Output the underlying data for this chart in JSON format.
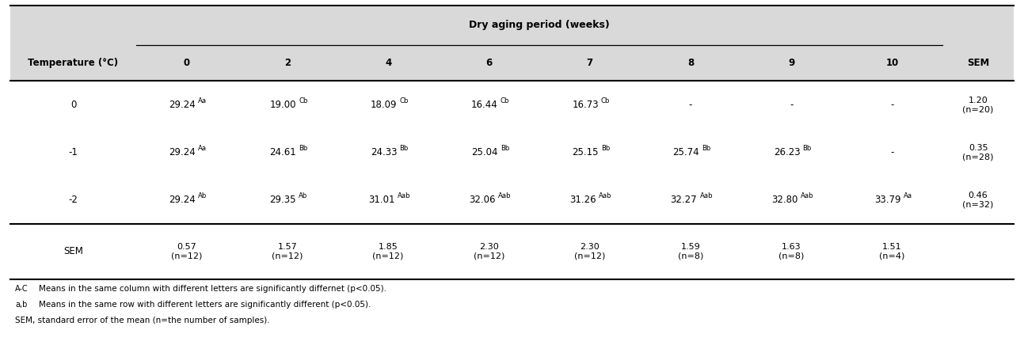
{
  "title": "Dry aging period (weeks)",
  "col_header": [
    "0",
    "2",
    "4",
    "6",
    "7",
    "8",
    "9",
    "10"
  ],
  "sem_col_header": "SEM",
  "temp_col_header": "Temperature (°C)",
  "data_raw": {
    "0": [
      "29.24",
      "19.00",
      "18.09",
      "16.44",
      "16.73",
      "-",
      "-",
      "-"
    ],
    "-1": [
      "29.24",
      "24.61",
      "24.33",
      "25.04",
      "25.15",
      "25.74",
      "26.23",
      "-"
    ],
    "-2": [
      "29.24",
      "29.35",
      "31.01",
      "32.06",
      "31.26",
      "32.27",
      "32.80",
      "33.79"
    ],
    "SEM": [
      "0.57\n(n=12)",
      "1.57\n(n=12)",
      "1.85\n(n=12)",
      "2.30\n(n=12)",
      "2.30\n(n=12)",
      "1.59\n(n=8)",
      "1.63\n(n=8)",
      "1.51\n(n=4)"
    ]
  },
  "superscripts": {
    "0": [
      "Aa",
      "Cb",
      "Cb",
      "Cb",
      "Cb",
      "",
      "",
      ""
    ],
    "-1": [
      "Aa",
      "Bb",
      "Bb",
      "Bb",
      "Bb",
      "Bb",
      "Bb",
      ""
    ],
    "-2": [
      "Ab",
      "Ab",
      "Aab",
      "Aab",
      "Aab",
      "Aab",
      "Aab",
      "Aa"
    ]
  },
  "sem_col": {
    "0": "1.20\n(n=20)",
    "-1": "0.35\n(n=28)",
    "-2": "0.46\n(n=32)"
  },
  "bg_color_header": "#d9d9d9",
  "bg_color_body": "#ffffff",
  "font_size": 8.5,
  "footnote1_super": "A-C",
  "footnote1_text": "  Means in the same column with different letters are significantly differnet (p<0.05).",
  "footnote2_super": "a,b",
  "footnote2_text": "  Means in the same row with different letters are significantly different (p<0.05).",
  "footnote3_text": "SEM, standard error of the mean (n=the number of samples)."
}
